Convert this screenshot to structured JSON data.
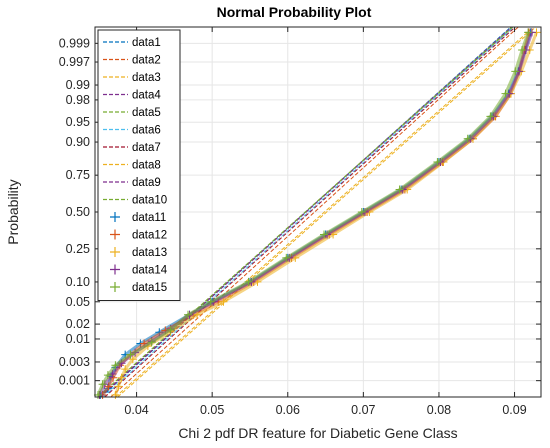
{
  "chart_data": {
    "type": "scatter",
    "title": "Normal Probability Plot",
    "xlabel": "Chi 2 pdf DR feature for Diabetic Gene Class",
    "ylabel": "Probability",
    "xlim": [
      0.0345,
      0.0935
    ],
    "x_ticks": [
      0.04,
      0.05,
      0.06,
      0.07,
      0.08,
      0.09
    ],
    "x_tick_labels": [
      "0.04",
      "0.05",
      "0.06",
      "0.07",
      "0.08",
      "0.09"
    ],
    "y_scale": "normal-probability",
    "y_ticks": [
      0.001,
      0.003,
      0.01,
      0.02,
      0.05,
      0.1,
      0.25,
      0.5,
      0.75,
      0.9,
      0.95,
      0.98,
      0.99,
      0.997,
      0.999
    ],
    "y_tick_labels": [
      "0.001",
      "0.003",
      "0.01",
      "0.02",
      "0.05",
      "0.10",
      "0.25",
      "0.50",
      "0.75",
      "0.90",
      "0.95",
      "0.98",
      "0.99",
      "0.997",
      "0.999"
    ],
    "grid": true,
    "legend_position": "top-left",
    "reference_lines": [
      {
        "name": "data1",
        "color": "#0072BD",
        "x0": 0.0353,
        "x1": 0.0895
      },
      {
        "name": "data2",
        "color": "#D95319",
        "x0": 0.0366,
        "x1": 0.0905
      },
      {
        "name": "data3",
        "color": "#EDB120",
        "x0": 0.0375,
        "x1": 0.0928
      },
      {
        "name": "data4",
        "color": "#7E2F8E",
        "x0": 0.0351,
        "x1": 0.0896
      },
      {
        "name": "data5",
        "color": "#77AC30",
        "x0": 0.0349,
        "x1": 0.0898
      },
      {
        "name": "data6",
        "color": "#4DBEEE",
        "x0": 0.0356,
        "x1": 0.0899
      },
      {
        "name": "data7",
        "color": "#A2142F",
        "x0": 0.0358,
        "x1": 0.0901
      },
      {
        "name": "data8",
        "color": "#EDB120",
        "x0": 0.0372,
        "x1": 0.0925
      },
      {
        "name": "data9",
        "color": "#7E2F8E",
        "x0": 0.0352,
        "x1": 0.0897
      },
      {
        "name": "data10",
        "color": "#77AC30",
        "x0": 0.0349,
        "x1": 0.0897
      }
    ],
    "samples": [
      {
        "name": "data11",
        "color": "#0072BD",
        "points": [
          [
            0.0352,
            0.0004
          ],
          [
            0.0362,
            0.0006
          ],
          [
            0.0366,
            0.0013
          ],
          [
            0.0372,
            0.0022
          ],
          [
            0.0385,
            0.0045
          ],
          [
            0.0405,
            0.008
          ],
          [
            0.043,
            0.0138
          ],
          [
            0.047,
            0.03
          ],
          [
            0.05,
            0.05
          ],
          [
            0.055,
            0.1
          ],
          [
            0.06,
            0.2
          ],
          [
            0.065,
            0.34
          ],
          [
            0.07,
            0.5
          ],
          [
            0.075,
            0.66
          ],
          [
            0.08,
            0.82
          ],
          [
            0.084,
            0.91
          ],
          [
            0.087,
            0.96
          ],
          [
            0.0892,
            0.985
          ],
          [
            0.0905,
            0.995
          ],
          [
            0.0914,
            0.9985
          ],
          [
            0.0921,
            0.9995
          ]
        ]
      },
      {
        "name": "data12",
        "color": "#D95319",
        "points": [
          [
            0.0355,
            0.0004
          ],
          [
            0.0363,
            0.0007
          ],
          [
            0.0369,
            0.0012
          ],
          [
            0.0378,
            0.0025
          ],
          [
            0.0392,
            0.0045
          ],
          [
            0.041,
            0.008
          ],
          [
            0.0438,
            0.015
          ],
          [
            0.0475,
            0.03
          ],
          [
            0.0508,
            0.05
          ],
          [
            0.0555,
            0.1
          ],
          [
            0.0605,
            0.2
          ],
          [
            0.0655,
            0.34
          ],
          [
            0.0705,
            0.5
          ],
          [
            0.0755,
            0.66
          ],
          [
            0.0805,
            0.82
          ],
          [
            0.0845,
            0.91
          ],
          [
            0.0875,
            0.96
          ],
          [
            0.0895,
            0.985
          ],
          [
            0.0906,
            0.995
          ],
          [
            0.0913,
            0.9985
          ],
          [
            0.0919,
            0.9995
          ]
        ]
      },
      {
        "name": "data13",
        "color": "#EDB120",
        "points": [
          [
            0.0372,
            0.0004
          ],
          [
            0.0376,
            0.0007
          ],
          [
            0.038,
            0.0012
          ],
          [
            0.0385,
            0.002
          ],
          [
            0.0395,
            0.0035
          ],
          [
            0.0415,
            0.007
          ],
          [
            0.0445,
            0.014
          ],
          [
            0.048,
            0.03
          ],
          [
            0.0515,
            0.05
          ],
          [
            0.056,
            0.1
          ],
          [
            0.061,
            0.2
          ],
          [
            0.066,
            0.34
          ],
          [
            0.0708,
            0.5
          ],
          [
            0.0758,
            0.66
          ],
          [
            0.0806,
            0.82
          ],
          [
            0.0845,
            0.91
          ],
          [
            0.0874,
            0.96
          ],
          [
            0.0895,
            0.985
          ],
          [
            0.0909,
            0.995
          ],
          [
            0.092,
            0.9985
          ],
          [
            0.0929,
            0.9995
          ]
        ]
      },
      {
        "name": "data14",
        "color": "#7E2F8E",
        "points": [
          [
            0.0351,
            0.0004
          ],
          [
            0.0358,
            0.0008
          ],
          [
            0.0368,
            0.0015
          ],
          [
            0.038,
            0.0028
          ],
          [
            0.0398,
            0.005
          ],
          [
            0.042,
            0.009
          ],
          [
            0.0445,
            0.016
          ],
          [
            0.047,
            0.03
          ],
          [
            0.0502,
            0.05
          ],
          [
            0.0552,
            0.1
          ],
          [
            0.0602,
            0.2
          ],
          [
            0.0652,
            0.34
          ],
          [
            0.0702,
            0.5
          ],
          [
            0.0752,
            0.66
          ],
          [
            0.0802,
            0.82
          ],
          [
            0.0842,
            0.91
          ],
          [
            0.0872,
            0.96
          ],
          [
            0.0893,
            0.985
          ],
          [
            0.0906,
            0.995
          ],
          [
            0.0915,
            0.9985
          ],
          [
            0.0923,
            0.9995
          ]
        ]
      },
      {
        "name": "data15",
        "color": "#77AC30",
        "points": [
          [
            0.0349,
            0.0004
          ],
          [
            0.0355,
            0.0008
          ],
          [
            0.0362,
            0.0014
          ],
          [
            0.0372,
            0.0025
          ],
          [
            0.0392,
            0.0045
          ],
          [
            0.042,
            0.0085
          ],
          [
            0.0445,
            0.0155
          ],
          [
            0.0468,
            0.03
          ],
          [
            0.0498,
            0.05
          ],
          [
            0.0548,
            0.1
          ],
          [
            0.0598,
            0.2
          ],
          [
            0.0648,
            0.34
          ],
          [
            0.0698,
            0.5
          ],
          [
            0.0748,
            0.66
          ],
          [
            0.0798,
            0.82
          ],
          [
            0.0838,
            0.91
          ],
          [
            0.0868,
            0.96
          ],
          [
            0.0888,
            0.985
          ],
          [
            0.0901,
            0.995
          ],
          [
            0.091,
            0.9985
          ],
          [
            0.0918,
            0.9995
          ]
        ]
      }
    ]
  },
  "colors": {
    "axes": "#262626",
    "grid": "#e6e6e6",
    "background": "#ffffff"
  }
}
